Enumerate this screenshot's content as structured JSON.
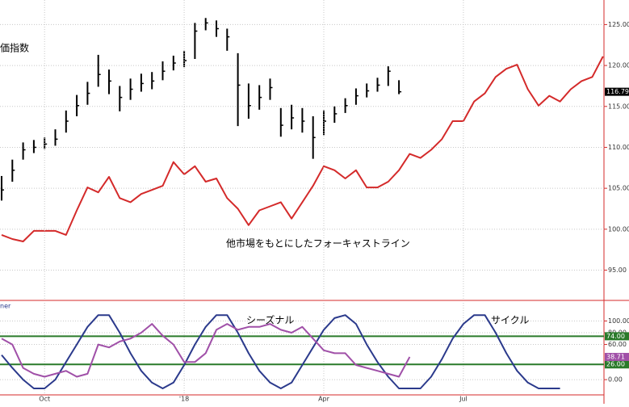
{
  "chart_data": [
    {
      "type": "combo",
      "ylim": [
        91.5,
        128
      ],
      "yticks": [
        {
          "value": 95,
          "label": "95.00"
        },
        {
          "value": 100,
          "label": "100.00"
        },
        {
          "value": 105,
          "label": "105.00"
        },
        {
          "value": 110,
          "label": "110.00"
        },
        {
          "value": 115,
          "label": "115.00"
        },
        {
          "value": 120,
          "label": "120.00"
        },
        {
          "value": 125,
          "label": "125.00"
        }
      ],
      "grid": true,
      "series": [
        {
          "name": "価指数",
          "type": "ohlc",
          "color": "#000000",
          "values": [
            104.8,
            107.2,
            109.7,
            110,
            110.4,
            111,
            113.2,
            115.1,
            116.6,
            118.9,
            118.1,
            116.1,
            117.1,
            117.8,
            118.1,
            119.3,
            120.3,
            120.6,
            124.2,
            125.2,
            124.5,
            123.5,
            117.6,
            115.1,
            116.1,
            117.3,
            112.7,
            113.6,
            113.2,
            111.2,
            113.2,
            114.1,
            115.1,
            116.3,
            116.9,
            117.6,
            119.3,
            116.79,
            null,
            null,
            null,
            null,
            null,
            null,
            null,
            null,
            null,
            null,
            null,
            null,
            null,
            null,
            null,
            null,
            null,
            null,
            null
          ],
          "high": [
            106.5,
            108.5,
            110.6,
            110.9,
            111.2,
            112.2,
            114.5,
            116.4,
            118,
            121.3,
            119.5,
            117.5,
            118.4,
            119,
            119.2,
            120.5,
            121.2,
            121.8,
            125.2,
            125.8,
            125.5,
            124.5,
            121.5,
            117.8,
            117.6,
            118.4,
            114.8,
            115.2,
            114.8,
            113.8,
            114.5,
            115,
            116,
            117.2,
            117.8,
            118.5,
            119.9,
            118.2,
            null,
            null,
            null,
            null,
            null,
            null,
            null,
            null,
            null,
            null,
            null,
            null,
            null,
            null,
            null,
            null,
            null,
            null,
            null
          ],
          "low": [
            103.5,
            105.8,
            108.5,
            109.3,
            109.8,
            110.2,
            111.8,
            113.8,
            115.2,
            117.4,
            116.5,
            114.4,
            115.8,
            116.8,
            117.1,
            118.2,
            119.4,
            119.8,
            120.8,
            124.3,
            123.5,
            121.8,
            112.6,
            113.5,
            114.6,
            115.8,
            111.3,
            112.2,
            111.8,
            108.6,
            111.5,
            113,
            114.2,
            115.2,
            116.1,
            116.8,
            117.5,
            116.5,
            null,
            null,
            null,
            null,
            null,
            null,
            null,
            null,
            null,
            null,
            null,
            null,
            null,
            null,
            null,
            null,
            null,
            null,
            null
          ],
          "value_labels": [
            null,
            null,
            null,
            null,
            null,
            null,
            null,
            null,
            null,
            null,
            null,
            null,
            null,
            null,
            null,
            null,
            null,
            null,
            null,
            null,
            null,
            null,
            null,
            null,
            null,
            null,
            null,
            null,
            null,
            null,
            null,
            null,
            null,
            null,
            null,
            null,
            null,
            "116.79",
            null,
            null,
            null,
            null,
            null,
            null,
            null,
            null,
            null,
            null,
            null,
            null,
            null,
            null,
            null,
            null,
            null,
            null,
            null
          ]
        },
        {
          "name": "他市場をもとにしたフォーキャストライン",
          "type": "line",
          "color": "#d42a2a",
          "values": [
            99.3,
            98.8,
            98.5,
            99.8,
            99.8,
            99.8,
            99.3,
            102.3,
            105.1,
            104.5,
            106.4,
            103.8,
            103.3,
            104.3,
            104.8,
            105.3,
            108.2,
            106.7,
            107.7,
            105.8,
            106.2,
            103.8,
            102.5,
            100.5,
            102.3,
            102.8,
            103.3,
            101.3,
            103.3,
            105.3,
            107.7,
            107.2,
            106.2,
            107.2,
            105.1,
            105.1,
            105.8,
            107.2,
            109.2,
            108.7,
            109.7,
            111,
            113.2,
            113.2,
            115.6,
            116.6,
            118.6,
            119.6,
            120.1,
            117.1,
            115.1,
            116.3,
            115.6,
            117.1,
            118.1,
            118.6,
            121.1
          ]
        }
      ]
    },
    {
      "type": "combo",
      "categories": [
        null,
        null,
        null,
        null,
        "Oct",
        null,
        null,
        null,
        null,
        null,
        null,
        null,
        null,
        null,
        null,
        null,
        null,
        "'18",
        null,
        null,
        null,
        null,
        null,
        null,
        null,
        null,
        null,
        null,
        null,
        null,
        "Apr",
        null,
        null,
        null,
        null,
        null,
        null,
        null,
        null,
        null,
        null,
        null,
        null,
        "Jul",
        null,
        null,
        null,
        null,
        null,
        null,
        null,
        null,
        null,
        null,
        null,
        null,
        null
      ],
      "ylim": [
        -26,
        131
      ],
      "yticks": [
        {
          "value": 0,
          "label": "0.00"
        },
        {
          "value": 60,
          "label": "60.00"
        },
        {
          "value": 80,
          "label": "80.00"
        },
        {
          "value": 100,
          "label": "100.00"
        }
      ],
      "grid": true,
      "label": "ner",
      "hlines": [
        {
          "value": 74,
          "label": "74.00",
          "color": "#2a7a2a"
        },
        {
          "value": 26,
          "label": "26.00",
          "color": "#2a7a2a"
        }
      ],
      "series": [
        {
          "name": "サイクル",
          "type": "line",
          "color": "#2b3a8c",
          "values": [
            42,
            20,
            0,
            -15,
            -15,
            0,
            30,
            60,
            90,
            110,
            110,
            80,
            45,
            15,
            -5,
            -15,
            -5,
            25,
            60,
            90,
            110,
            110,
            80,
            45,
            15,
            -5,
            -15,
            -5,
            25,
            55,
            85,
            105,
            110,
            95,
            60,
            30,
            5,
            -15,
            -15,
            -15,
            5,
            35,
            70,
            95,
            110,
            110,
            80,
            45,
            15,
            -5,
            -15,
            -15,
            -15,
            null,
            null,
            null,
            null
          ]
        },
        {
          "name": "シーズナル",
          "type": "line",
          "color": "#a050a8",
          "values": [
            70,
            60,
            20,
            10,
            5,
            10,
            15,
            5,
            10,
            60,
            55,
            65,
            70,
            80,
            95,
            75,
            60,
            30,
            30,
            45,
            85,
            95,
            85,
            90,
            90,
            95,
            85,
            80,
            90,
            70,
            50,
            45,
            45,
            25,
            20,
            15,
            10,
            5,
            38.71,
            null,
            null,
            null,
            null,
            null,
            null,
            null,
            null,
            null,
            null,
            null,
            null,
            null,
            null,
            null,
            null,
            null,
            null
          ],
          "value_labels": [
            null,
            null,
            null,
            null,
            null,
            null,
            null,
            null,
            null,
            null,
            null,
            null,
            null,
            null,
            null,
            null,
            null,
            null,
            null,
            null,
            null,
            null,
            null,
            null,
            null,
            null,
            null,
            null,
            null,
            null,
            null,
            null,
            null,
            null,
            null,
            null,
            null,
            null,
            "38.71",
            null,
            null,
            null,
            null,
            null,
            null,
            null,
            null,
            null,
            null,
            null,
            null,
            null,
            null,
            null,
            null,
            null,
            null
          ]
        }
      ]
    }
  ]
}
